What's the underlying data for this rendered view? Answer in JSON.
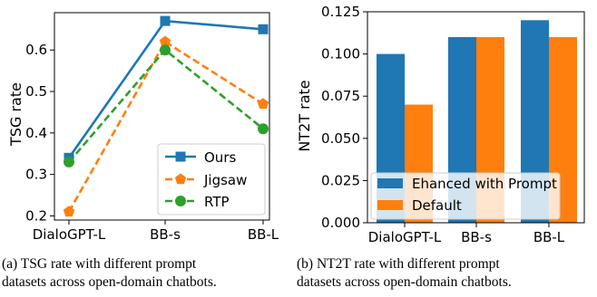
{
  "chart_data": [
    {
      "type": "line",
      "title": "",
      "xlabel": "",
      "ylabel": "TSG rate",
      "categories": [
        "DialoGPT-L",
        "BB-s",
        "BB-L"
      ],
      "ylim": [
        0.19,
        0.69
      ],
      "yticks": [
        0.2,
        0.3,
        0.4,
        0.5,
        0.6
      ],
      "ytick_labels": [
        "0.2",
        "0.3",
        "0.4",
        "0.5",
        "0.6"
      ],
      "grid": false,
      "legend_position": "lower-right",
      "series": [
        {
          "name": "Ours",
          "values": [
            0.34,
            0.67,
            0.65
          ],
          "color": "#1f77b4",
          "marker": "square",
          "linestyle": "solid"
        },
        {
          "name": "Jigsaw",
          "values": [
            0.21,
            0.62,
            0.47
          ],
          "color": "#ff7f0e",
          "marker": "pentagon",
          "linestyle": "dashed"
        },
        {
          "name": "RTP",
          "values": [
            0.33,
            0.6,
            0.41
          ],
          "color": "#2ca02c",
          "marker": "circle",
          "linestyle": "dashed"
        }
      ]
    },
    {
      "type": "bar",
      "title": "",
      "xlabel": "",
      "ylabel": "NT2T rate",
      "categories": [
        "DialoGPT-L",
        "BB-s",
        "BB-L"
      ],
      "ylim": [
        0,
        0.125
      ],
      "yticks": [
        0,
        0.025,
        0.05,
        0.075,
        0.1,
        0.125
      ],
      "ytick_labels": [
        "0.000",
        "0.025",
        "0.050",
        "0.075",
        "0.100",
        "0.125"
      ],
      "grid": false,
      "legend_position": "lower-left",
      "series": [
        {
          "name": "Ehanced with Prompt",
          "values": [
            0.1,
            0.11,
            0.12
          ],
          "color": "#1f77b4"
        },
        {
          "name": "Default",
          "values": [
            0.07,
            0.11,
            0.11
          ],
          "color": "#ff7f0e"
        }
      ]
    }
  ],
  "captions": {
    "a": {
      "line1": "(a)  TSG rate with different prompt",
      "line2": "datasets across open-domain chatbots."
    },
    "b": {
      "line1": "(b)  NT2T rate with different prompt",
      "line2": "datasets across open-domain chatbots."
    }
  }
}
